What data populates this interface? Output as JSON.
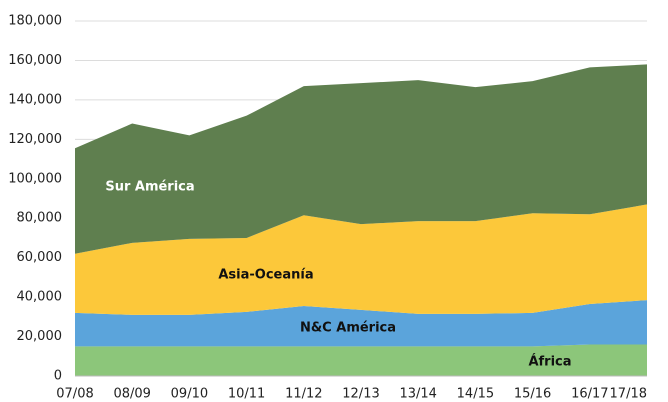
{
  "chart_data": {
    "type": "stacked_area",
    "categories": [
      "07/08",
      "08/09",
      "09/10",
      "10/11",
      "11/12",
      "12/13",
      "13/14",
      "14/15",
      "15/16",
      "16/17",
      "17/18"
    ],
    "series": [
      {
        "name": "África",
        "color": "#8cc67a",
        "label_color": "#111111",
        "values": [
          15000,
          15000,
          15000,
          15000,
          15000,
          15000,
          15000,
          15000,
          15000,
          16000,
          16000
        ]
      },
      {
        "name": "N&C América",
        "color": "#5ba4db",
        "label_color": "#111111",
        "values": [
          17000,
          16000,
          16000,
          17500,
          20500,
          18500,
          16500,
          16500,
          17000,
          20500,
          22500
        ]
      },
      {
        "name": "Asia-Oceanía",
        "color": "#fcc83a",
        "label_color": "#111111",
        "values": [
          30000,
          36500,
          38500,
          37500,
          46000,
          43500,
          47000,
          47000,
          50500,
          45500,
          48500
        ]
      },
      {
        "name": "Sur América",
        "color": "#5f7f4f",
        "label_color": "#ffffff",
        "values": [
          53500,
          60500,
          52500,
          62000,
          65500,
          71500,
          71500,
          68000,
          67000,
          74500,
          71000
        ]
      }
    ],
    "ylim": [
      0,
      180000
    ],
    "yticks": [
      0,
      {
        "value": 20000,
        "label": "20,000"
      },
      {
        "value": 40000,
        "label": "40,000"
      },
      {
        "value": 60000,
        "label": "60,000"
      },
      {
        "value": 80000,
        "label": "80,000"
      },
      {
        "value": 100000,
        "label": "100,000"
      },
      {
        "value": 120000,
        "label": "120,000"
      },
      {
        "value": 140000,
        "label": "140,000"
      },
      {
        "value": 160000,
        "label": "160,000"
      },
      {
        "value": 180000,
        "label": "180,000"
      }
    ],
    "grid": true
  }
}
